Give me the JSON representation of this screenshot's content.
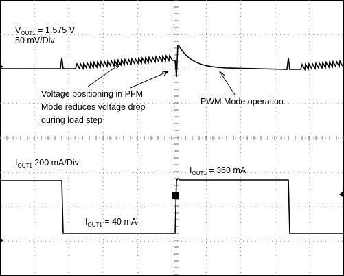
{
  "voltage_label": {
    "symbol": "V",
    "sub": "OUT1",
    "text": " = 1.575 V"
  },
  "voltage_scale": "50 mV/Div",
  "pfm_note": [
    "Voltage positioning in PFM",
    "Mode reduces voltage drop",
    "during load step"
  ],
  "pwm_note": "PWM Mode operation",
  "current_label": {
    "symbol": "I",
    "sub": "OUT1",
    "text": " 200 mA/Div"
  },
  "current_high": {
    "symbol": "I",
    "sub": "OUT1",
    "text": " = 360 mA"
  },
  "current_low": {
    "symbol": "I",
    "sub": "OUT1",
    "text": " = 40 mA"
  }
}
